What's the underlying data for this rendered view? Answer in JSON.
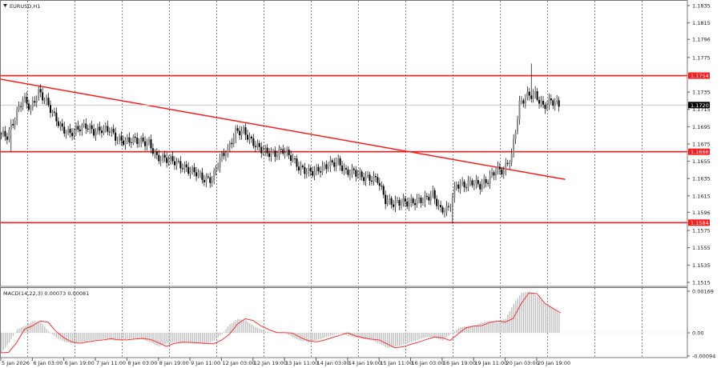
{
  "window": {
    "symbol_label": "EURUSD,H1",
    "collapse_icon": "triangle-down-icon"
  },
  "colors": {
    "level": "#ff1a1a",
    "trendline": "#ff1a1a",
    "bear": "#000000",
    "bull": "#8a8a8a",
    "macd_hist": "#c0c0c0",
    "macd_signal": "#ff3030",
    "current_price_bg": "#000000",
    "grid": "#555555"
  },
  "chart_data": [
    {
      "type": "candlestick",
      "title": "EURUSD,H1",
      "timeframe": "H1",
      "sample_step_hours": 4,
      "closes": [
        1.1687,
        1.1684,
        1.1705,
        1.1728,
        1.1716,
        1.1735,
        1.1724,
        1.1707,
        1.1692,
        1.1687,
        1.1693,
        1.1696,
        1.1689,
        1.1692,
        1.1692,
        1.168,
        1.1678,
        1.168,
        1.1678,
        1.1676,
        1.1659,
        1.1658,
        1.1656,
        1.165,
        1.1645,
        1.1642,
        1.1634,
        1.1634,
        1.1658,
        1.1668,
        1.1689,
        1.169,
        1.1678,
        1.167,
        1.1665,
        1.1663,
        1.1668,
        1.166,
        1.1648,
        1.1643,
        1.1643,
        1.1647,
        1.1652,
        1.1654,
        1.1642,
        1.1643,
        1.1637,
        1.1635,
        1.1634,
        1.161,
        1.1606,
        1.1608,
        1.1607,
        1.1609,
        1.1611,
        1.1617,
        1.1598,
        1.16,
        1.1628,
        1.1627,
        1.1631,
        1.1627,
        1.1633,
        1.1645,
        1.1644,
        1.1662,
        1.1721,
        1.1731,
        1.1732,
        1.1718,
        1.1725,
        1.172
      ],
      "wick_extremes": [
        {
          "sample": 67,
          "high": 1.1768
        },
        {
          "sample": 57,
          "low": 1.1583
        },
        {
          "sample": 1,
          "low": 1.1666
        }
      ],
      "ylim": [
        1.1515,
        1.1835
      ],
      "y_ticks": [
        "1.1835",
        "1.1815",
        "1.1796",
        "1.1775",
        "1.1735",
        "1.1715",
        "1.1695",
        "1.1675",
        "1.1655",
        "1.1635",
        "1.1615",
        "1.1596",
        "1.1575",
        "1.1555",
        "1.1535",
        "1.1515"
      ],
      "horizontal_levels": [
        {
          "price": "1.1754"
        },
        {
          "price": "1.1666"
        },
        {
          "price": "1.1584"
        }
      ],
      "current_price": "1.1720",
      "trendline": {
        "from": {
          "sample": 0,
          "price": 1.175
        },
        "to": {
          "sample": 71.5,
          "price": 1.1634
        }
      },
      "x_tick_labels": [
        "5 Jan 2026",
        "6 Jan 03:00",
        "6 Jan 19:00",
        "7 Jan 11:00",
        "8 Jan 03:00",
        "8 Jan 19:00",
        "9 Jan 11:00",
        "12 Jan 03:00",
        "12 Jan 19:00",
        "13 Jan 11:00",
        "14 Jan 03:00",
        "14 Jan 19:00",
        "15 Jan 11:00",
        "16 Jan 03:00",
        "16 Jan 19:00",
        "19 Jan 11:00",
        "20 Jan 03:00",
        "20 Jan 19:00"
      ],
      "grid": "vertical dotted"
    },
    {
      "type": "bar+line",
      "title": "MACD(14,22,3) 0.00073 0.00081",
      "histogram": [
        -0.00079,
        -0.0004,
        0.00014,
        0.00028,
        0.00048,
        0.00043,
        6e-05,
        -0.0002,
        -0.00037,
        -0.00042,
        -0.00037,
        -0.00032,
        -0.00029,
        -0.00024,
        -0.00029,
        -0.00029,
        -0.00025,
        -0.00023,
        -0.00027,
        -0.0004,
        -0.00055,
        -0.00043,
        -0.00038,
        -0.00039,
        -0.00041,
        -0.00043,
        -0.00045,
        -0.0003,
        -6e-05,
        0.00035,
        0.00057,
        0.0005,
        0.00028,
        0.00013,
        1e-05,
        1e-05,
        -1e-05,
        -0.00019,
        -0.00032,
        -0.00037,
        -0.0003,
        -0.0002,
        -0.0001,
        0.0,
        -0.00013,
        -0.0002,
        -0.00026,
        -0.00029,
        -0.00045,
        -0.00061,
        -0.00057,
        -0.00047,
        -0.00038,
        -0.00027,
        -0.00017,
        -0.0002,
        -0.00031,
        -5e-05,
        0.0002,
        0.00027,
        0.00029,
        0.00042,
        0.00048,
        0.00044,
        0.00058,
        0.00118,
        0.00162,
        0.00168,
        0.00148,
        0.0012,
        0.001,
        0.00073
      ],
      "signal": [
        -0.00081,
        -0.00079,
        -0.0004,
        0.00014,
        0.00028,
        0.00048,
        0.00043,
        6e-05,
        -0.0002,
        -0.00037,
        -0.00042,
        -0.00037,
        -0.00032,
        -0.00029,
        -0.00024,
        -0.00029,
        -0.00029,
        -0.00025,
        -0.00023,
        -0.00027,
        -0.0004,
        -0.00055,
        -0.00043,
        -0.00038,
        -0.00039,
        -0.00041,
        -0.00043,
        -0.00045,
        -0.0003,
        -6e-05,
        0.00035,
        0.00057,
        0.0005,
        0.00028,
        0.00013,
        1e-05,
        1e-05,
        -1e-05,
        -0.00019,
        -0.00032,
        -0.00037,
        -0.0003,
        -0.0002,
        -0.0001,
        0.0,
        -0.00013,
        -0.0002,
        -0.00026,
        -0.00029,
        -0.00045,
        -0.00061,
        -0.00057,
        -0.00047,
        -0.00038,
        -0.00027,
        -0.00017,
        -0.0002,
        -0.00031,
        -5e-05,
        0.0002,
        0.00027,
        0.00029,
        0.00042,
        0.00048,
        0.00044,
        0.00058,
        0.00118,
        0.00162,
        0.00159,
        0.0012,
        0.001,
        0.00081
      ],
      "ylim": [
        -0.00094,
        0.00169
      ],
      "y_ticks": [
        "0.00169",
        "0.00",
        "-0.00094"
      ]
    }
  ]
}
